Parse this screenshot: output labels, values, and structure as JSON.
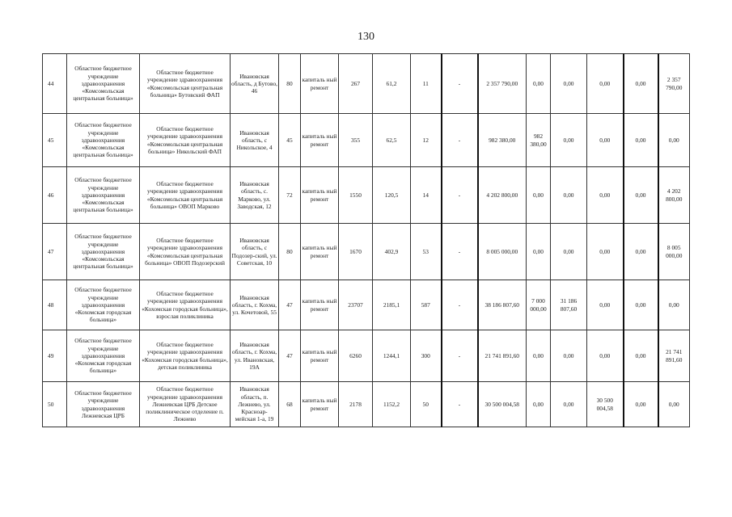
{
  "page_number": "130",
  "rows": [
    [
      "44",
      "Областное бюджетное учреждение здравоохранения «Комсомольская центральная больница»",
      "Областное бюджетное учреждение здравоохранения «Комсомольская центральная больница» Бутовский ФАП",
      "Ивановская область, д Бутово, 46",
      "80",
      "капиталь ный ремонт",
      "267",
      "61,2",
      "11",
      "-",
      "2 357 790,00",
      "0,00",
      "0,00",
      "0,00",
      "0,00",
      "2 357 790,00"
    ],
    [
      "45",
      "Областное бюджетное учреждение здравоохранения «Комсомольская центральная больница»",
      "Областное бюджетное учреждение здравоохранения «Комсомольская центральная больница» Никольский ФАП",
      "Ивановская область, с Никольское, 4",
      "45",
      "капиталь ный ремонт",
      "355",
      "62,5",
      "12",
      "-",
      "982 380,00",
      "982 380,00",
      "0,00",
      "0,00",
      "0,00",
      "0,00"
    ],
    [
      "46",
      "Областное бюджетное учреждение здравоохранения «Комсомольская центральная больница»",
      "Областное бюджетное учреждение здравоохранения «Комсомольская центральная больница» ОВОП Марково",
      "Ивановская область, с. Марково, ул. Заводская, 12",
      "72",
      "капиталь ный ремонт",
      "1550",
      "120,5",
      "14",
      "-",
      "4 202 800,00",
      "0,00",
      "0,00",
      "0,00",
      "0,00",
      "4 202 800,00"
    ],
    [
      "47",
      "Областное бюджетное учреждение здравоохранения «Комсомольская центральная больница»",
      "Областное бюджетное учреждение здравоохранения «Комсомольская центральная больница» ОВОП Подозерский",
      "Ивановская область, с Подозер-ский, ул. Советская, 10",
      "80",
      "капиталь ный ремонт",
      "1670",
      "402,9",
      "53",
      "-",
      "8 005 000,00",
      "0,00",
      "0,00",
      "0,00",
      "0,00",
      "8 005 000,00"
    ],
    [
      "48",
      "Областное бюджетное учреждение здравоохранения «Кохомская городская больница»",
      "Областное бюджетное учреждение здравоохранения «Кохомская городская больница», взрослая поликлиника",
      "Ивановская область, г. Кохма, ул. Кочетовой, 55",
      "47",
      "капиталь ный ремонт",
      "23707",
      "2185,1",
      "587",
      "-",
      "38 186 807,60",
      "7 000 000,00",
      "31 186 807,60",
      "0,00",
      "0,00",
      "0,00"
    ],
    [
      "49",
      "Областное бюджетное учреждение здравоохранения «Кохомская городская больница»",
      "Областное бюджетное учреждение здравоохранения «Кохомская городская больница», детская поликлиника",
      "Ивановская область, г. Кохма, ул. Ивановская, 19А",
      "47",
      "капиталь ный ремонт",
      "6260",
      "1244,1",
      "300",
      "-",
      "21 741 891,60",
      "0,00",
      "0,00",
      "0,00",
      "0,00",
      "21 741 891,60"
    ],
    [
      "50",
      "Областное бюджетное учреждение здравоохранения Лежневская ЦРБ",
      "Областное бюджетное учреждение здравоохранения Лежневская ЦРБ Детское поликлиническое отделение п. Лежнево",
      "Ивановская область, п. Лежнево, ул. Красноар-мейская 1-а, 19",
      "68",
      "капиталь ный ремонт",
      "2178",
      "1152,2",
      "50",
      "-",
      "30 500 004,58",
      "0,00",
      "0,00",
      "30 500 004,58",
      "0,00",
      "0,00"
    ]
  ]
}
